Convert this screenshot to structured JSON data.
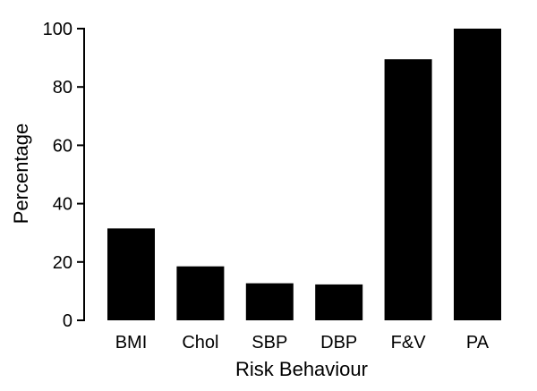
{
  "chart_data": {
    "type": "bar",
    "categories": [
      "BMI",
      "Chol",
      "SBP",
      "DBP",
      "F&V",
      "PA"
    ],
    "values": [
      31.5,
      18.5,
      12.7,
      12.3,
      89.5,
      100
    ],
    "xlabel": "Risk Behaviour",
    "ylabel": "Percentage",
    "ylim": [
      0,
      100
    ],
    "yticks": [
      0,
      20,
      40,
      60,
      80,
      100
    ],
    "grid": false,
    "bar_color": "#000000"
  }
}
